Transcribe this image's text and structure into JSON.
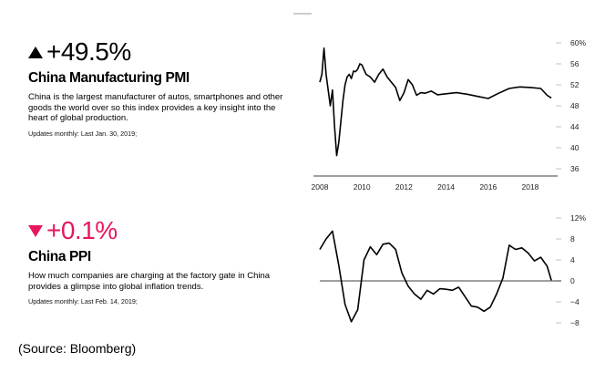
{
  "source": "(Source: Bloomberg)",
  "charts": [
    {
      "change": "+49.5%",
      "direction": "up",
      "title": "China Manufacturing PMI",
      "description": "China is the largest manufacturer of autos, smartphones and other goods the world over so this index provides a key insight into the heart of global production.",
      "updates": "Updates monthly: Last Jan. 30, 2019;",
      "colors": {
        "change": "#000000",
        "line": "#000000"
      }
    },
    {
      "change": "+0.1%",
      "direction": "down",
      "title": "China PPI",
      "description": "How much companies are charging at the factory gate in China provides a glimpse into global inflation trends.",
      "updates": "Updates monthly: Last Feb. 14, 2019;",
      "colors": {
        "change": "#e8175d",
        "line": "#000000"
      }
    }
  ],
  "chart_data": [
    {
      "type": "line",
      "title": "China Manufacturing PMI",
      "xticks": [
        "2008",
        "2010",
        "2012",
        "2014",
        "2016",
        "2018"
      ],
      "yticks": [
        "60%",
        "56",
        "52",
        "48",
        "44",
        "40",
        "36"
      ],
      "xlim": [
        2008,
        2019.3
      ],
      "ylim": [
        36,
        60
      ],
      "series": [
        {
          "x": [
            2008.0,
            2008.1,
            2008.2,
            2008.3,
            2008.4,
            2008.5,
            2008.6,
            2008.7,
            2008.8,
            2008.9,
            2009.0,
            2009.1,
            2009.2,
            2009.3,
            2009.4,
            2009.5,
            2009.6,
            2009.7,
            2009.8,
            2009.9,
            2010.0,
            2010.2,
            2010.4,
            2010.6,
            2010.8,
            2011.0,
            2011.2,
            2011.4,
            2011.6,
            2011.8,
            2012.0,
            2012.2,
            2012.4,
            2012.6,
            2012.8,
            2013.0,
            2013.3,
            2013.6,
            2014.0,
            2014.5,
            2015.0,
            2015.5,
            2016.0,
            2016.5,
            2017.0,
            2017.5,
            2018.0,
            2018.5,
            2018.8,
            2019.0
          ],
          "y": [
            52.5,
            54,
            59,
            54,
            51,
            48,
            51,
            44,
            38.5,
            41,
            45,
            49,
            52,
            53.5,
            54,
            53.2,
            54.6,
            54.5,
            55,
            56,
            55.8,
            54,
            53.5,
            52.5,
            54,
            55,
            53.5,
            52.5,
            51.5,
            49,
            50.5,
            53,
            52,
            50,
            50.5,
            50.4,
            50.8,
            50.1,
            50.3,
            50.5,
            50.2,
            49.8,
            49.4,
            50.4,
            51.3,
            51.6,
            51.5,
            51.3,
            50,
            49.5
          ]
        }
      ]
    },
    {
      "type": "line",
      "title": "China PPI",
      "xticks": [],
      "yticks": [
        "12%",
        "8",
        "4",
        "0",
        "−4",
        "−8"
      ],
      "xlim": [
        2008,
        2019.3
      ],
      "ylim": [
        -8,
        12
      ],
      "zero_line": true,
      "series": [
        {
          "x": [
            2008.0,
            2008.3,
            2008.6,
            2008.9,
            2009.2,
            2009.5,
            2009.8,
            2010.1,
            2010.4,
            2010.7,
            2011.0,
            2011.3,
            2011.6,
            2011.9,
            2012.2,
            2012.5,
            2012.8,
            2013.1,
            2013.4,
            2013.7,
            2014.0,
            2014.3,
            2014.6,
            2014.9,
            2015.2,
            2015.5,
            2015.8,
            2016.1,
            2016.4,
            2016.7,
            2017.0,
            2017.3,
            2017.6,
            2017.9,
            2018.2,
            2018.5,
            2018.8,
            2019.0
          ],
          "y": [
            6,
            8,
            9.5,
            3,
            -4.5,
            -7.8,
            -5.5,
            4,
            6.5,
            5,
            7,
            7.2,
            6,
            1.5,
            -1,
            -2.5,
            -3.5,
            -1.8,
            -2.5,
            -1.5,
            -1.6,
            -1.8,
            -1.2,
            -3,
            -4.8,
            -5,
            -5.8,
            -5,
            -2.5,
            0.5,
            6.8,
            6,
            6.3,
            5.3,
            3.8,
            4.5,
            2.8,
            0.1
          ]
        }
      ]
    }
  ]
}
